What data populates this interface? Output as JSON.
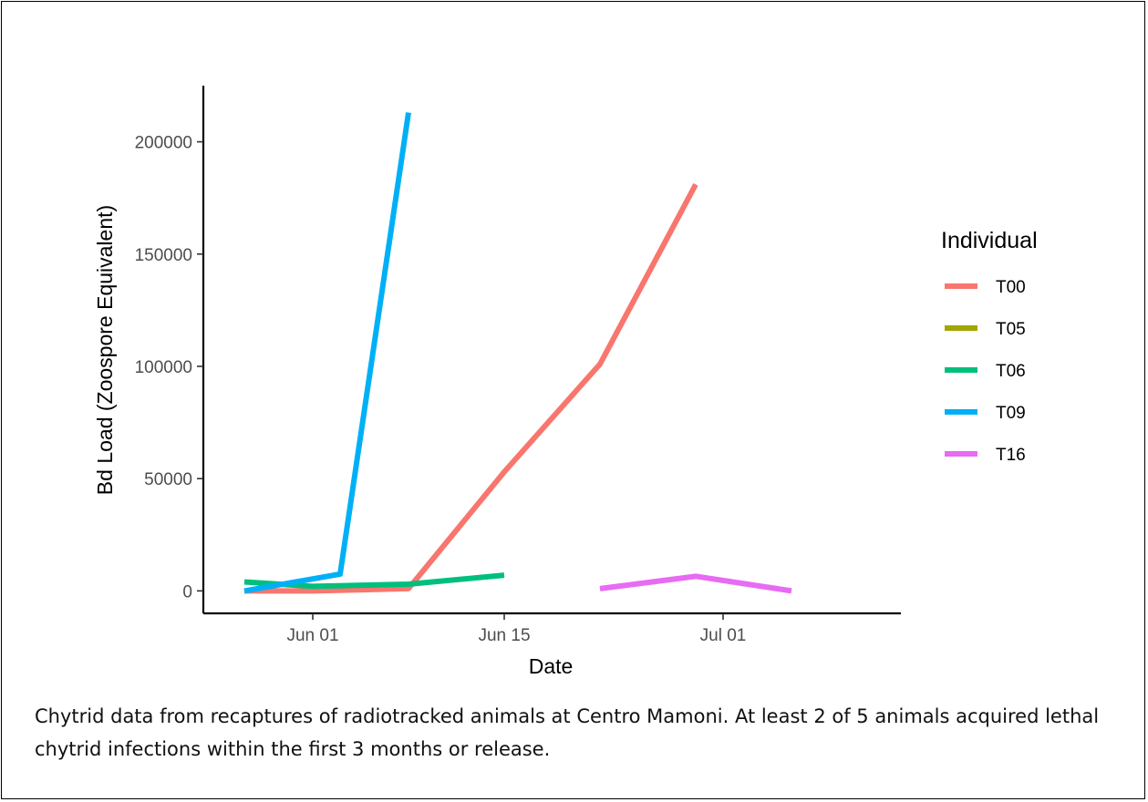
{
  "chart_data": {
    "type": "line",
    "xlabel": "Date",
    "ylabel": "Bd Load (Zoospore Equivalent)",
    "x_ticks": [
      {
        "date": "2019-06-01",
        "label": "Jun 01"
      },
      {
        "date": "2019-06-15",
        "label": "Jun 15"
      },
      {
        "date": "2019-07-01",
        "label": "Jul 01"
      }
    ],
    "xlim": [
      "2019-05-24",
      "2019-07-14"
    ],
    "y_ticks": [
      0,
      50000,
      100000,
      150000,
      200000
    ],
    "y_tick_labels": [
      "0",
      "50000",
      "100000",
      "150000",
      "200000"
    ],
    "ylim": [
      -10000,
      225000
    ],
    "grid": false,
    "legend": {
      "title": "Individual",
      "position": "right"
    },
    "series": [
      {
        "name": "T00",
        "color": "#F8766D",
        "points": [
          {
            "x": "2019-05-27",
            "y": 0
          },
          {
            "x": "2019-06-01",
            "y": 0
          },
          {
            "x": "2019-06-08",
            "y": 1000
          },
          {
            "x": "2019-06-15",
            "y": 53000
          },
          {
            "x": "2019-06-22",
            "y": 101000
          },
          {
            "x": "2019-06-29",
            "y": 181000
          }
        ]
      },
      {
        "name": "T05",
        "color": "#A3A500",
        "points": []
      },
      {
        "name": "T06",
        "color": "#00BF7D",
        "points": [
          {
            "x": "2019-05-27",
            "y": 4000
          },
          {
            "x": "2019-06-01",
            "y": 2000
          },
          {
            "x": "2019-06-08",
            "y": 3000
          },
          {
            "x": "2019-06-15",
            "y": 7000
          }
        ]
      },
      {
        "name": "T09",
        "color": "#00B0F6",
        "points": [
          {
            "x": "2019-05-27",
            "y": 0
          },
          {
            "x": "2019-06-03",
            "y": 7500
          },
          {
            "x": "2019-06-08",
            "y": 213000
          }
        ]
      },
      {
        "name": "T16",
        "color": "#E76BF3",
        "points": [
          {
            "x": "2019-06-22",
            "y": 1000
          },
          {
            "x": "2019-06-29",
            "y": 6500
          },
          {
            "x": "2019-07-06",
            "y": 0
          }
        ]
      }
    ]
  },
  "caption": "Chytrid data from recaptures of radiotracked animals at Centro Mamoni. At least 2 of 5 animals acquired lethal chytrid infections within the first 3 months or release."
}
